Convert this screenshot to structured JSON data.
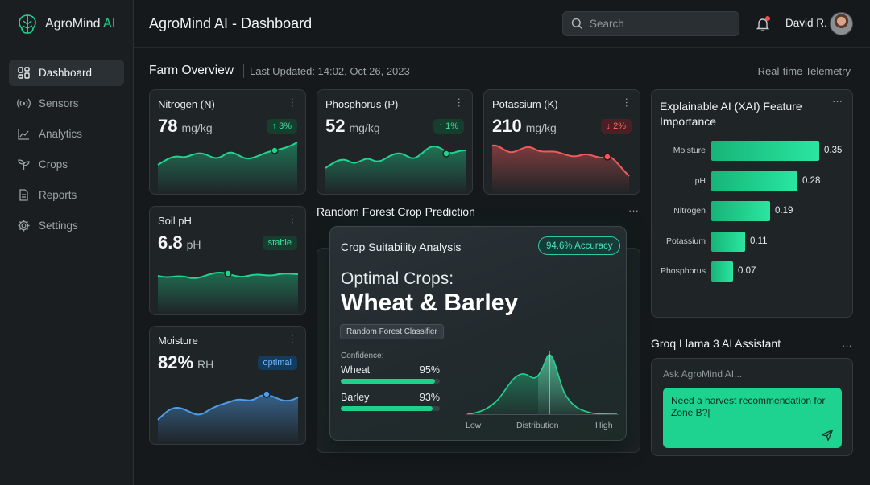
{
  "app": {
    "brand": "AgroMind",
    "brand_ai": "AI",
    "page_title": "AgroMind AI - Dashboard"
  },
  "sidebar": {
    "items": [
      {
        "label": "Dashboard",
        "icon": "grid-icon",
        "active": true
      },
      {
        "label": "Sensors",
        "icon": "signal-icon"
      },
      {
        "label": "Analytics",
        "icon": "line-chart-icon"
      },
      {
        "label": "Crops",
        "icon": "sprout-icon"
      },
      {
        "label": "Reports",
        "icon": "document-icon"
      },
      {
        "label": "Settings",
        "icon": "gear-icon"
      }
    ]
  },
  "header": {
    "search_placeholder": "Search",
    "user_name": "David R."
  },
  "overview": {
    "title": "Farm Overview",
    "updated": "Last Updated: 14:02, Oct 26, 2023",
    "telemetry": "Real-time Telemetry"
  },
  "metrics": {
    "nitrogen": {
      "title": "Nitrogen (N)",
      "value": "78",
      "unit": "mg/kg",
      "badge": "↑ 3%",
      "color": "#22d38f"
    },
    "phosphorus": {
      "title": "Phosphorus (P)",
      "value": "52",
      "unit": "mg/kg",
      "badge": "↑ 1%",
      "color": "#22d38f"
    },
    "potassium": {
      "title": "Potassium (K)",
      "value": "210",
      "unit": "mg/kg",
      "badge": "↓ 2%",
      "color": "#f05a5a"
    },
    "soil_ph": {
      "title": "Soil pH",
      "value": "6.8",
      "unit": "pH",
      "badge": "stable",
      "color": "#22d38f"
    },
    "moisture": {
      "title": "Moisture",
      "value": "82%",
      "unit": "RH",
      "badge": "optimal",
      "color": "#4d9de8"
    }
  },
  "prediction": {
    "section_title": "Random Forest Crop Prediction",
    "card_title": "Crop Suitability Analysis",
    "accuracy": "94.6% Accuracy",
    "optimal_label": "Optimal Crops:",
    "crops": "Wheat & Barley",
    "model": "Random Forest Classifier",
    "confidence_label": "Confidence:",
    "confidence": [
      {
        "name": "Wheat",
        "pct": "95%",
        "value": 95
      },
      {
        "name": "Barley",
        "pct": "93%",
        "value": 93
      }
    ],
    "dist_labels": {
      "low": "Low",
      "mid": "Distribution",
      "high": "High"
    }
  },
  "xai": {
    "title": "Explainable AI (XAI) Feature Importance",
    "features": [
      {
        "name": "Moisture",
        "value": 0.35,
        "label": "0.35"
      },
      {
        "name": "pH",
        "value": 0.28,
        "label": "0.28"
      },
      {
        "name": "Nitrogen",
        "value": 0.19,
        "label": "0.19"
      },
      {
        "name": "Potassium",
        "value": 0.11,
        "label": "0.11"
      },
      {
        "name": "Phosphorus",
        "value": 0.07,
        "label": "0.07"
      }
    ]
  },
  "assistant": {
    "title": "Groq Llama 3 AI Assistant",
    "input_placeholder": "Ask AgroMind AI...",
    "message": "Need a harvest recommendation for Zone B?|"
  }
}
